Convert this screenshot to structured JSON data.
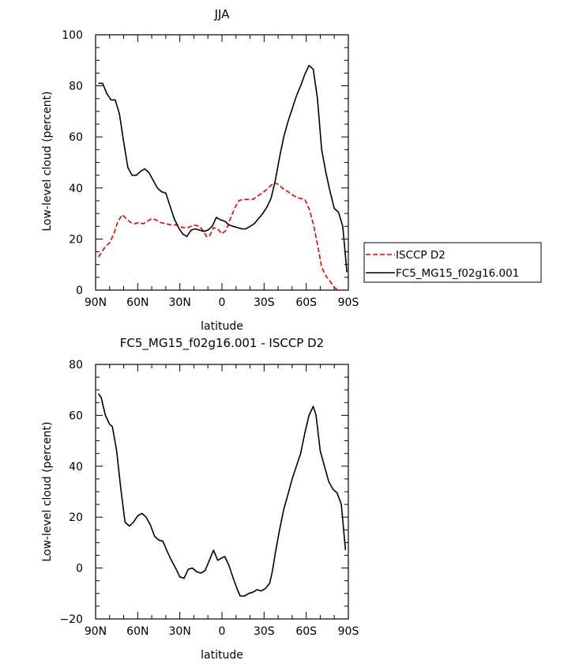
{
  "chart_data": [
    {
      "type": "line",
      "title": "JJA",
      "xlabel": "latitude",
      "ylabel": "Low-level cloud (percent)",
      "xlim": [
        -90,
        90
      ],
      "ylim": [
        0,
        100
      ],
      "x_ticks": [
        {
          "value": -90,
          "label": "90N"
        },
        {
          "value": -60,
          "label": "60N"
        },
        {
          "value": -30,
          "label": "30N"
        },
        {
          "value": 0,
          "label": "0"
        },
        {
          "value": 30,
          "label": "30S"
        },
        {
          "value": 60,
          "label": "60S"
        },
        {
          "value": 90,
          "label": "90S"
        }
      ],
      "y_ticks": [
        0,
        20,
        40,
        60,
        80,
        100
      ],
      "grid": false,
      "legend": {
        "placement": "right"
      },
      "series": [
        {
          "name": "ISCCP D2",
          "color": "#dd0000",
          "dash": "dashed",
          "points": [
            [
              -88,
              13
            ],
            [
              -86,
              14.5
            ],
            [
              -83,
              17
            ],
            [
              -80,
              18.5
            ],
            [
              -77,
              22
            ],
            [
              -74,
              27
            ],
            [
              -71,
              29.5
            ],
            [
              -68,
              28
            ],
            [
              -65,
              26.5
            ],
            [
              -62,
              26
            ],
            [
              -59,
              26.5
            ],
            [
              -56,
              26
            ],
            [
              -53,
              27
            ],
            [
              -50,
              28
            ],
            [
              -47,
              27.5
            ],
            [
              -44,
              26.5
            ],
            [
              -40,
              26
            ],
            [
              -36,
              25.5
            ],
            [
              -32,
              25.5
            ],
            [
              -28,
              24.5
            ],
            [
              -24,
              24.5
            ],
            [
              -20,
              25.5
            ],
            [
              -16,
              25
            ],
            [
              -13,
              23
            ],
            [
              -11,
              21
            ],
            [
              -9,
              21
            ],
            [
              -6,
              24.5
            ],
            [
              -3,
              24
            ],
            [
              0,
              22
            ],
            [
              3,
              23.5
            ],
            [
              6,
              28
            ],
            [
              9,
              32
            ],
            [
              12,
              35
            ],
            [
              15,
              35.5
            ],
            [
              18,
              35.5
            ],
            [
              22,
              35.5
            ],
            [
              26,
              37
            ],
            [
              30,
              38.5
            ],
            [
              34,
              40.5
            ],
            [
              37,
              42
            ],
            [
              40,
              41.5
            ],
            [
              43,
              40
            ],
            [
              47,
              38.5
            ],
            [
              51,
              37
            ],
            [
              55,
              36
            ],
            [
              59,
              35.5
            ],
            [
              62,
              32
            ],
            [
              65,
              26
            ],
            [
              68,
              18
            ],
            [
              71,
              9
            ],
            [
              74,
              5.5
            ],
            [
              77,
              3.5
            ],
            [
              80,
              1
            ],
            [
              83,
              0
            ],
            [
              86,
              0
            ]
          ]
        },
        {
          "name": "FC5_MG15_f02g16.001",
          "color": "#000000",
          "dash": "solid",
          "points": [
            [
              -88,
              81
            ],
            [
              -85,
              81
            ],
            [
              -82,
              77
            ],
            [
              -79,
              74.5
            ],
            [
              -76,
              74.5
            ],
            [
              -73,
              69
            ],
            [
              -70,
              58
            ],
            [
              -67,
              48
            ],
            [
              -64,
              45
            ],
            [
              -61,
              45
            ],
            [
              -58,
              46.5
            ],
            [
              -55,
              47.5
            ],
            [
              -52,
              46
            ],
            [
              -49,
              43
            ],
            [
              -46,
              40
            ],
            [
              -43,
              38.5
            ],
            [
              -40,
              38
            ],
            [
              -37,
              33
            ],
            [
              -34,
              28
            ],
            [
              -31,
              24.5
            ],
            [
              -28,
              22
            ],
            [
              -25,
              21
            ],
            [
              -22,
              23.5
            ],
            [
              -19,
              24
            ],
            [
              -16,
              23.5
            ],
            [
              -13,
              23
            ],
            [
              -10,
              23.5
            ],
            [
              -7,
              25
            ],
            [
              -4,
              28.5
            ],
            [
              -1,
              27.5
            ],
            [
              2,
              27
            ],
            [
              5,
              25.5
            ],
            [
              8,
              25
            ],
            [
              11,
              24.5
            ],
            [
              14,
              24
            ],
            [
              17,
              24
            ],
            [
              20,
              25
            ],
            [
              23,
              26
            ],
            [
              26,
              28
            ],
            [
              29,
              30
            ],
            [
              32,
              32.5
            ],
            [
              35,
              36
            ],
            [
              38,
              43
            ],
            [
              41,
              52
            ],
            [
              44,
              60
            ],
            [
              47,
              66
            ],
            [
              50,
              71
            ],
            [
              53,
              76
            ],
            [
              56,
              80
            ],
            [
              59,
              84.5
            ],
            [
              62,
              88
            ],
            [
              65,
              86.5
            ],
            [
              68,
              75
            ],
            [
              71,
              55
            ],
            [
              74,
              46
            ],
            [
              77,
              38.5
            ],
            [
              80,
              32
            ],
            [
              83,
              30.5
            ],
            [
              86,
              25
            ],
            [
              89,
              7
            ]
          ]
        }
      ]
    },
    {
      "type": "line",
      "title": "FC5_MG15_f02g16.001 - ISCCP D2",
      "xlabel": "latitude",
      "ylabel": "Low-level cloud (percent)",
      "xlim": [
        -90,
        90
      ],
      "ylim": [
        -20,
        80
      ],
      "x_ticks": [
        {
          "value": -90,
          "label": "90N"
        },
        {
          "value": -60,
          "label": "60N"
        },
        {
          "value": -30,
          "label": "30N"
        },
        {
          "value": 0,
          "label": "0"
        },
        {
          "value": 30,
          "label": "30S"
        },
        {
          "value": 60,
          "label": "60S"
        },
        {
          "value": 90,
          "label": "90S"
        }
      ],
      "y_ticks": [
        -20,
        0,
        20,
        40,
        60,
        80
      ],
      "grid": false,
      "series": [
        {
          "color": "#000000",
          "dash": "solid",
          "points": [
            [
              -88,
              68.5
            ],
            [
              -86,
              67
            ],
            [
              -83,
              60
            ],
            [
              -80,
              56.5
            ],
            [
              -78,
              55.5
            ],
            [
              -75,
              46
            ],
            [
              -72,
              31
            ],
            [
              -69,
              18
            ],
            [
              -66,
              16.5
            ],
            [
              -63,
              18
            ],
            [
              -60,
              20.5
            ],
            [
              -57,
              21.5
            ],
            [
              -54,
              20
            ],
            [
              -51,
              17
            ],
            [
              -48,
              12.5
            ],
            [
              -45,
              11
            ],
            [
              -42,
              10.5
            ],
            [
              -39,
              6.5
            ],
            [
              -36,
              3
            ],
            [
              -33,
              0
            ],
            [
              -30,
              -3.5
            ],
            [
              -27,
              -4
            ],
            [
              -24,
              -0.5
            ],
            [
              -21,
              0
            ],
            [
              -18,
              -1.5
            ],
            [
              -15,
              -2
            ],
            [
              -12,
              -1
            ],
            [
              -9,
              3
            ],
            [
              -6,
              7
            ],
            [
              -3,
              3
            ],
            [
              0,
              4
            ],
            [
              2,
              4.5
            ],
            [
              5,
              1
            ],
            [
              8,
              -4
            ],
            [
              11,
              -8.5
            ],
            [
              13,
              -11
            ],
            [
              16,
              -11
            ],
            [
              19,
              -10
            ],
            [
              22,
              -9.5
            ],
            [
              25,
              -8.5
            ],
            [
              28,
              -9
            ],
            [
              31,
              -8
            ],
            [
              34,
              -6
            ],
            [
              36,
              -1
            ],
            [
              38,
              6
            ],
            [
              41,
              15
            ],
            [
              44,
              23
            ],
            [
              47,
              29
            ],
            [
              50,
              35
            ],
            [
              53,
              40
            ],
            [
              56,
              45
            ],
            [
              59,
              53
            ],
            [
              62,
              60
            ],
            [
              65,
              63.5
            ],
            [
              67,
              60
            ],
            [
              70,
              46
            ],
            [
              73,
              40
            ],
            [
              76,
              34
            ],
            [
              79,
              31
            ],
            [
              82,
              29.5
            ],
            [
              85,
              25
            ],
            [
              88,
              7
            ]
          ]
        }
      ]
    }
  ]
}
